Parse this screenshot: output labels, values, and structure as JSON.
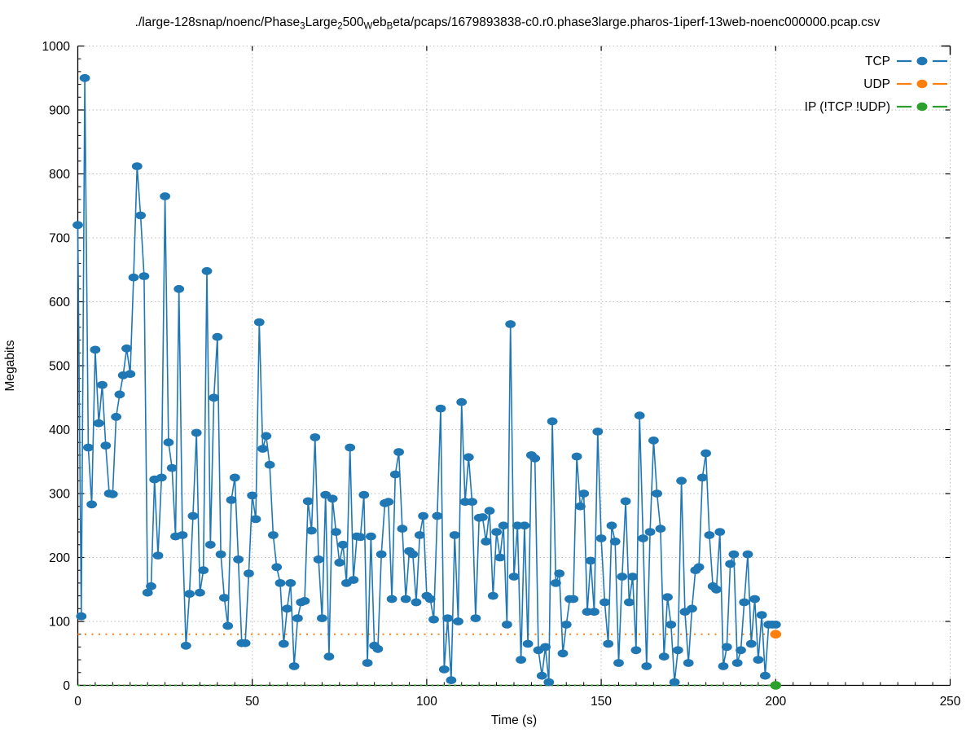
{
  "title": {
    "seg0": "./large-128snap/noenc/Phase",
    "sub0": "3",
    "seg1": "Large",
    "sub1": "2",
    "seg2": "500",
    "sub2": "W",
    "seg3": "eb",
    "sub3": "B",
    "seg4": "eta/pcaps/1679893838-c0.r0.phase3large.pharos-1iperf-13web-noenc000000.pcap.csv",
    "display_text": "./large-128snap/noenc/Phase3Large2500WebBeta/pcaps/1679893838-c0.r0.phase3large.pharos-1iperf-13web-noenc000000.pcap.csv"
  },
  "chart_data": {
    "type": "line",
    "title": "./large-128snap/noenc/Phase3Large2500WebBeta/pcaps/1679893838-c0.r0.phase3large.pharos-1iperf-13web-noenc000000.pcap.csv",
    "xlabel": "Time (s)",
    "ylabel": "Megabits",
    "xlim": [
      0,
      250
    ],
    "ylim": [
      0,
      1000
    ],
    "xticks": [
      0,
      50,
      100,
      150,
      200,
      250
    ],
    "yticks": [
      0,
      100,
      200,
      300,
      400,
      500,
      600,
      700,
      800,
      900,
      1000
    ],
    "x_minor_step": 5,
    "y_minor_step": 20,
    "grid": true,
    "grid_style": "dotted",
    "legend_position": "top-right-inside",
    "colors": {
      "tcp": "#1f77b4",
      "udp": "#ff7f0e",
      "ip": "#2ca02c",
      "grid": "#bdbdbd",
      "axis": "#000000"
    },
    "series": [
      {
        "name": "TCP",
        "color": "#1f77b4",
        "line_style": "solid",
        "marker": "filled-circle",
        "x_start": 0,
        "x_step": 1,
        "values": [
          720,
          108,
          950,
          372,
          283,
          525,
          410,
          470,
          375,
          300,
          299,
          420,
          455,
          485,
          527,
          487,
          638,
          812,
          735,
          640,
          145,
          155,
          322,
          203,
          325,
          765,
          380,
          340,
          233,
          620,
          235,
          62,
          143,
          265,
          395,
          145,
          180,
          648,
          220,
          450,
          545,
          205,
          137,
          93,
          290,
          325,
          197,
          66,
          66,
          175,
          297,
          260,
          568,
          370,
          390,
          345,
          235,
          185,
          160,
          65,
          120,
          160,
          30,
          105,
          130,
          132,
          288,
          242,
          388,
          197,
          105,
          298,
          45,
          292,
          240,
          192,
          220,
          160,
          372,
          165,
          233,
          232,
          298,
          35,
          233,
          62,
          57,
          205,
          285,
          287,
          135,
          330,
          365,
          245,
          135,
          210,
          205,
          130,
          235,
          265,
          140,
          135,
          103,
          265,
          433,
          25,
          105,
          8,
          235,
          100,
          443,
          287,
          357,
          287,
          105,
          262,
          263,
          225,
          273,
          140,
          240,
          200,
          250,
          95,
          565,
          170,
          250,
          40,
          250,
          65,
          360,
          355,
          55,
          15,
          60,
          5,
          413,
          160,
          175,
          50,
          95,
          135,
          135,
          358,
          280,
          300,
          115,
          195,
          115,
          397,
          230,
          130,
          65,
          250,
          225,
          35,
          170,
          288,
          130,
          170,
          55,
          422,
          230,
          30,
          240,
          383,
          300,
          245,
          45,
          138,
          95,
          5,
          55,
          320,
          115,
          35,
          120,
          180,
          185,
          325,
          363,
          235,
          155,
          150,
          240,
          30,
          60,
          190,
          205,
          35,
          55,
          130,
          205,
          65,
          135,
          40,
          110,
          15,
          95,
          95,
          95
        ]
      },
      {
        "name": "UDP",
        "color": "#ff7f0e",
        "line_style": "dashed",
        "marker": "filled-circle-at-end",
        "constant_value": 80,
        "x_range": [
          0,
          200
        ]
      },
      {
        "name": "IP (!TCP  !UDP)",
        "color": "#2ca02c",
        "line_style": "dashed",
        "marker": "filled-circle-at-end",
        "constant_value": 0,
        "x_range": [
          0,
          200
        ]
      }
    ]
  }
}
